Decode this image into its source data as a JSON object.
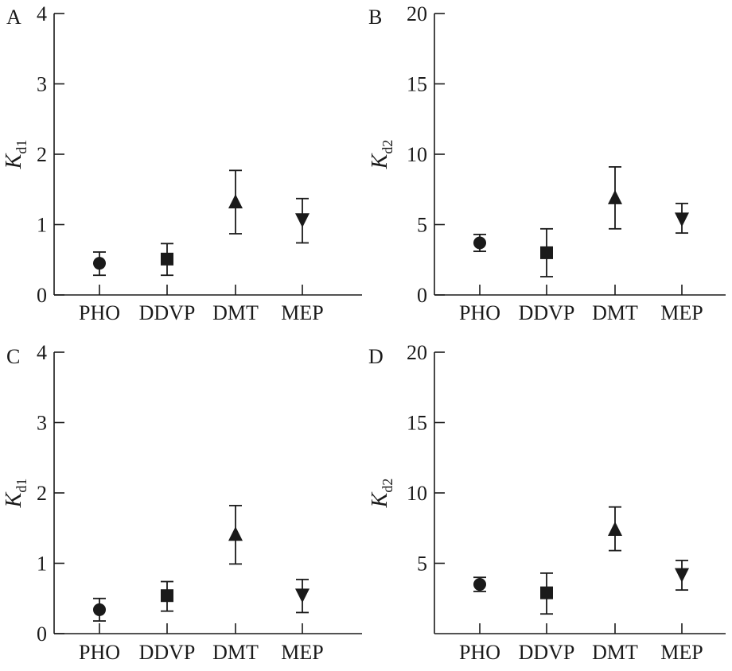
{
  "chart_data": [
    {
      "panel_label": "A",
      "type": "scatter",
      "categories": [
        "PHO",
        "DDVP",
        "DMT",
        "MEP"
      ],
      "markers": [
        "circle",
        "square",
        "triangle-up",
        "triangle-down"
      ],
      "ylabel_main": "K",
      "ylabel_sub": "d1",
      "ylim": [
        0,
        4
      ],
      "yticks": [
        0,
        1,
        2,
        3,
        4
      ],
      "ytick_labels": [
        "0",
        "1",
        "2",
        "3",
        "4"
      ],
      "values": [
        0.45,
        0.51,
        1.32,
        1.07
      ],
      "err_low": [
        0.28,
        0.28,
        0.87,
        0.74
      ],
      "err_high": [
        0.61,
        0.73,
        1.77,
        1.37
      ]
    },
    {
      "panel_label": "B",
      "type": "scatter",
      "categories": [
        "PHO",
        "DDVP",
        "DMT",
        "MEP"
      ],
      "markers": [
        "circle",
        "square",
        "triangle-up",
        "triangle-down"
      ],
      "ylabel_main": "K",
      "ylabel_sub": "d2",
      "ylim": [
        0,
        20
      ],
      "yticks": [
        0,
        5,
        10,
        15,
        20
      ],
      "ytick_labels": [
        "0",
        "5",
        "10",
        "15",
        "20"
      ],
      "values": [
        3.7,
        3.0,
        6.9,
        5.4
      ],
      "err_low": [
        3.1,
        1.3,
        4.7,
        4.4
      ],
      "err_high": [
        4.3,
        4.7,
        9.1,
        6.5
      ]
    },
    {
      "panel_label": "C",
      "type": "scatter",
      "categories": [
        "PHO",
        "DDVP",
        "DMT",
        "MEP"
      ],
      "markers": [
        "circle",
        "square",
        "triangle-up",
        "triangle-down"
      ],
      "ylabel_main": "K",
      "ylabel_sub": "d1",
      "ylim": [
        0,
        4
      ],
      "yticks": [
        0,
        1,
        2,
        3,
        4
      ],
      "ytick_labels": [
        "0",
        "1",
        "2",
        "3",
        "4"
      ],
      "values": [
        0.34,
        0.54,
        1.41,
        0.55
      ],
      "err_low": [
        0.18,
        0.32,
        0.99,
        0.3
      ],
      "err_high": [
        0.5,
        0.74,
        1.82,
        0.77
      ]
    },
    {
      "panel_label": "D",
      "type": "scatter",
      "categories": [
        "PHO",
        "DDVP",
        "DMT",
        "MEP"
      ],
      "markers": [
        "circle",
        "square",
        "triangle-up",
        "triangle-down"
      ],
      "ylabel_main": "K",
      "ylabel_sub": "d2",
      "ylim": [
        0,
        20
      ],
      "yticks": [
        5,
        10,
        15,
        20
      ],
      "ytick_labels": [
        "5",
        "10",
        "15",
        "20"
      ],
      "values": [
        3.5,
        2.9,
        7.4,
        4.2
      ],
      "err_low": [
        3.0,
        1.4,
        5.9,
        3.1
      ],
      "err_high": [
        4.0,
        4.3,
        9.0,
        5.2
      ]
    }
  ]
}
